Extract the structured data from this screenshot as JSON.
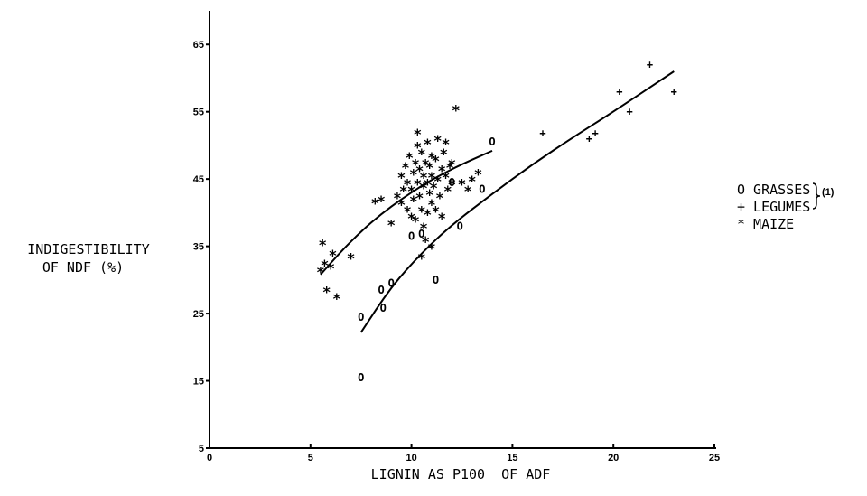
{
  "chart_data": {
    "type": "scatter",
    "xlabel": "LIGNIN AS P100  OF ADF",
    "ylabel": [
      "INDIGESTIBILITY",
      "OF NDF (%)"
    ],
    "xlim": [
      0,
      25
    ],
    "ylim": [
      5,
      70
    ],
    "x_ticks": [
      0,
      5,
      10,
      15,
      20,
      25
    ],
    "y_ticks": [
      5,
      15,
      25,
      35,
      45,
      55,
      65
    ],
    "grid": false,
    "legend_position": "right",
    "legend_note": "(1)",
    "series": [
      {
        "name": "GRASSES",
        "symbol": "O",
        "points": [
          [
            7.5,
            24.5
          ],
          [
            7.5,
            15.5
          ],
          [
            8.5,
            28.5
          ],
          [
            8.6,
            25.8
          ],
          [
            9.0,
            29.5
          ],
          [
            10.0,
            36.5
          ],
          [
            10.5,
            36.8
          ],
          [
            11.2,
            30.0
          ],
          [
            12.0,
            44.5
          ],
          [
            12.4,
            38.0
          ],
          [
            13.5,
            43.5
          ],
          [
            14.0,
            50.5
          ]
        ]
      },
      {
        "name": "LEGUMES",
        "symbol": "+",
        "points": [
          [
            16.5,
            51.8
          ],
          [
            18.8,
            51.0
          ],
          [
            19.1,
            51.8
          ],
          [
            20.3,
            58.0
          ],
          [
            20.8,
            55.0
          ],
          [
            21.8,
            62.0
          ],
          [
            23.0,
            58.0
          ]
        ]
      },
      {
        "name": "MAIZE",
        "symbol": "*",
        "points": [
          [
            5.6,
            35.0
          ],
          [
            5.5,
            31.0
          ],
          [
            5.7,
            32.0
          ],
          [
            6.1,
            33.5
          ],
          [
            6.0,
            31.5
          ],
          [
            7.0,
            33.0
          ],
          [
            5.8,
            28.0
          ],
          [
            6.3,
            27.0
          ],
          [
            8.2,
            41.2
          ],
          [
            8.5,
            41.5
          ],
          [
            9.0,
            38.0
          ],
          [
            9.3,
            42.0
          ],
          [
            9.5,
            41.0
          ],
          [
            9.5,
            45.0
          ],
          [
            9.6,
            43.0
          ],
          [
            9.7,
            46.5
          ],
          [
            9.8,
            44.0
          ],
          [
            9.8,
            40.0
          ],
          [
            9.9,
            48.0
          ],
          [
            10.0,
            43.0
          ],
          [
            10.0,
            39.0
          ],
          [
            10.1,
            45.5
          ],
          [
            10.1,
            41.5
          ],
          [
            10.2,
            47.0
          ],
          [
            10.2,
            38.5
          ],
          [
            10.3,
            44.0
          ],
          [
            10.3,
            49.5
          ],
          [
            10.3,
            51.5
          ],
          [
            10.4,
            42.0
          ],
          [
            10.4,
            46.0
          ],
          [
            10.5,
            40.0
          ],
          [
            10.5,
            48.5
          ],
          [
            10.6,
            43.5
          ],
          [
            10.6,
            37.5
          ],
          [
            10.6,
            45.0
          ],
          [
            10.7,
            47.0
          ],
          [
            10.7,
            35.5
          ],
          [
            10.8,
            44.0
          ],
          [
            10.8,
            50.0
          ],
          [
            10.8,
            39.5
          ],
          [
            10.9,
            46.5
          ],
          [
            10.9,
            42.5
          ],
          [
            11.0,
            45.0
          ],
          [
            11.0,
            48.0
          ],
          [
            11.0,
            41.0
          ],
          [
            11.0,
            34.5
          ],
          [
            11.1,
            43.5
          ],
          [
            11.2,
            40.0
          ],
          [
            11.2,
            47.5
          ],
          [
            11.3,
            50.5
          ],
          [
            11.3,
            44.5
          ],
          [
            11.4,
            42.0
          ],
          [
            11.5,
            46.0
          ],
          [
            11.5,
            39.0
          ],
          [
            11.6,
            48.5
          ],
          [
            11.7,
            45.0
          ],
          [
            11.7,
            50.0
          ],
          [
            11.8,
            43.0
          ],
          [
            11.9,
            46.5
          ],
          [
            12.0,
            47.0
          ],
          [
            12.0,
            44.0
          ],
          [
            12.2,
            55.0
          ],
          [
            12.5,
            44.0
          ],
          [
            12.8,
            43.0
          ],
          [
            13.0,
            44.5
          ],
          [
            13.3,
            45.5
          ],
          [
            10.5,
            33.0
          ]
        ]
      }
    ],
    "fit_curves": [
      {
        "for": "MAIZE",
        "x": [
          5.5,
          6.5,
          7.5,
          8.5,
          9.5,
          10.5,
          11.5,
          12.5,
          14.0
        ],
        "y": [
          30.8,
          34.2,
          37.2,
          39.8,
          42.0,
          44.0,
          45.7,
          47.2,
          49.2
        ]
      },
      {
        "for": "GRASSES + LEGUMES",
        "x": [
          7.5,
          9,
          10.5,
          12,
          14,
          16,
          18,
          20,
          23
        ],
        "y": [
          22.2,
          29.0,
          34.0,
          38.2,
          42.8,
          47.2,
          51.2,
          55.0,
          61.0
        ]
      }
    ]
  }
}
